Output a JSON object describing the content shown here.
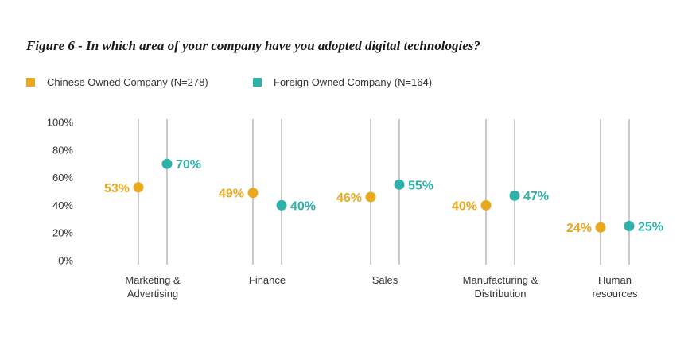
{
  "title": "Figure 6 - In which area of your company have you adopted digital technologies?",
  "colors": {
    "chinese": "#eaa81f",
    "foreign": "#2db1a9",
    "guide": "#bdbdbd"
  },
  "chart_data": {
    "type": "scatter",
    "title": "Figure 6 - In which area of your company have you adopted digital technologies?",
    "categories": [
      [
        "Marketing &",
        "Advertising"
      ],
      [
        "Finance"
      ],
      [
        "Sales"
      ],
      [
        "Manufacturing &",
        "Distribution"
      ],
      [
        "Human",
        "resources"
      ]
    ],
    "series": [
      {
        "name": "Chinese Owned Company (N=278)",
        "values": [
          53,
          49,
          46,
          40,
          24
        ],
        "labels": [
          "53%",
          "49%",
          "46%",
          "40%",
          "24%"
        ]
      },
      {
        "name": "Foreign Owned Company (N=164)",
        "values": [
          70,
          40,
          55,
          47,
          25
        ],
        "labels": [
          "70%",
          "40%",
          "55%",
          "47%",
          "25%"
        ]
      }
    ],
    "yticks": [
      "0%",
      "20%",
      "40%",
      "60%",
      "80%",
      "100%"
    ],
    "ylim": [
      0,
      100
    ],
    "legend_position": "top-left"
  }
}
